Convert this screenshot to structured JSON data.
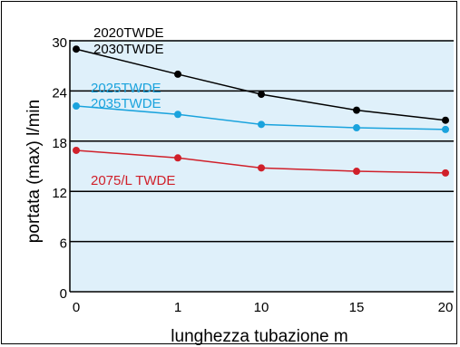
{
  "chart_data": {
    "type": "line",
    "xlabel": "lunghezza tubazione m",
    "ylabel": "portata (max)  l/min",
    "x_ticks": [
      "0",
      "1",
      "10",
      "15",
      "20"
    ],
    "y_ticks": [
      "0",
      "6",
      "12",
      "18",
      "24",
      "30"
    ],
    "ylim": [
      0,
      30
    ],
    "grid": "horizontal",
    "background": "#dff0fa",
    "series": [
      {
        "labels": [
          "2020TWDE",
          "2030TWDE"
        ],
        "color": "#000000",
        "x": [
          "0",
          "1",
          "10",
          "15",
          "20"
        ],
        "values": [
          29.0,
          26.0,
          23.6,
          21.7,
          20.5
        ]
      },
      {
        "labels": [
          "2025TWDE",
          "2035TWDE"
        ],
        "color": "#1aa3dd",
        "x": [
          "0",
          "1",
          "10",
          "15",
          "20"
        ],
        "values": [
          22.2,
          21.2,
          20.0,
          19.6,
          19.4
        ]
      },
      {
        "labels": [
          "2075/L TWDE"
        ],
        "color": "#d0202a",
        "x": [
          "0",
          "1",
          "10",
          "15",
          "20"
        ],
        "values": [
          16.9,
          16.0,
          14.8,
          14.4,
          14.2
        ]
      }
    ]
  }
}
